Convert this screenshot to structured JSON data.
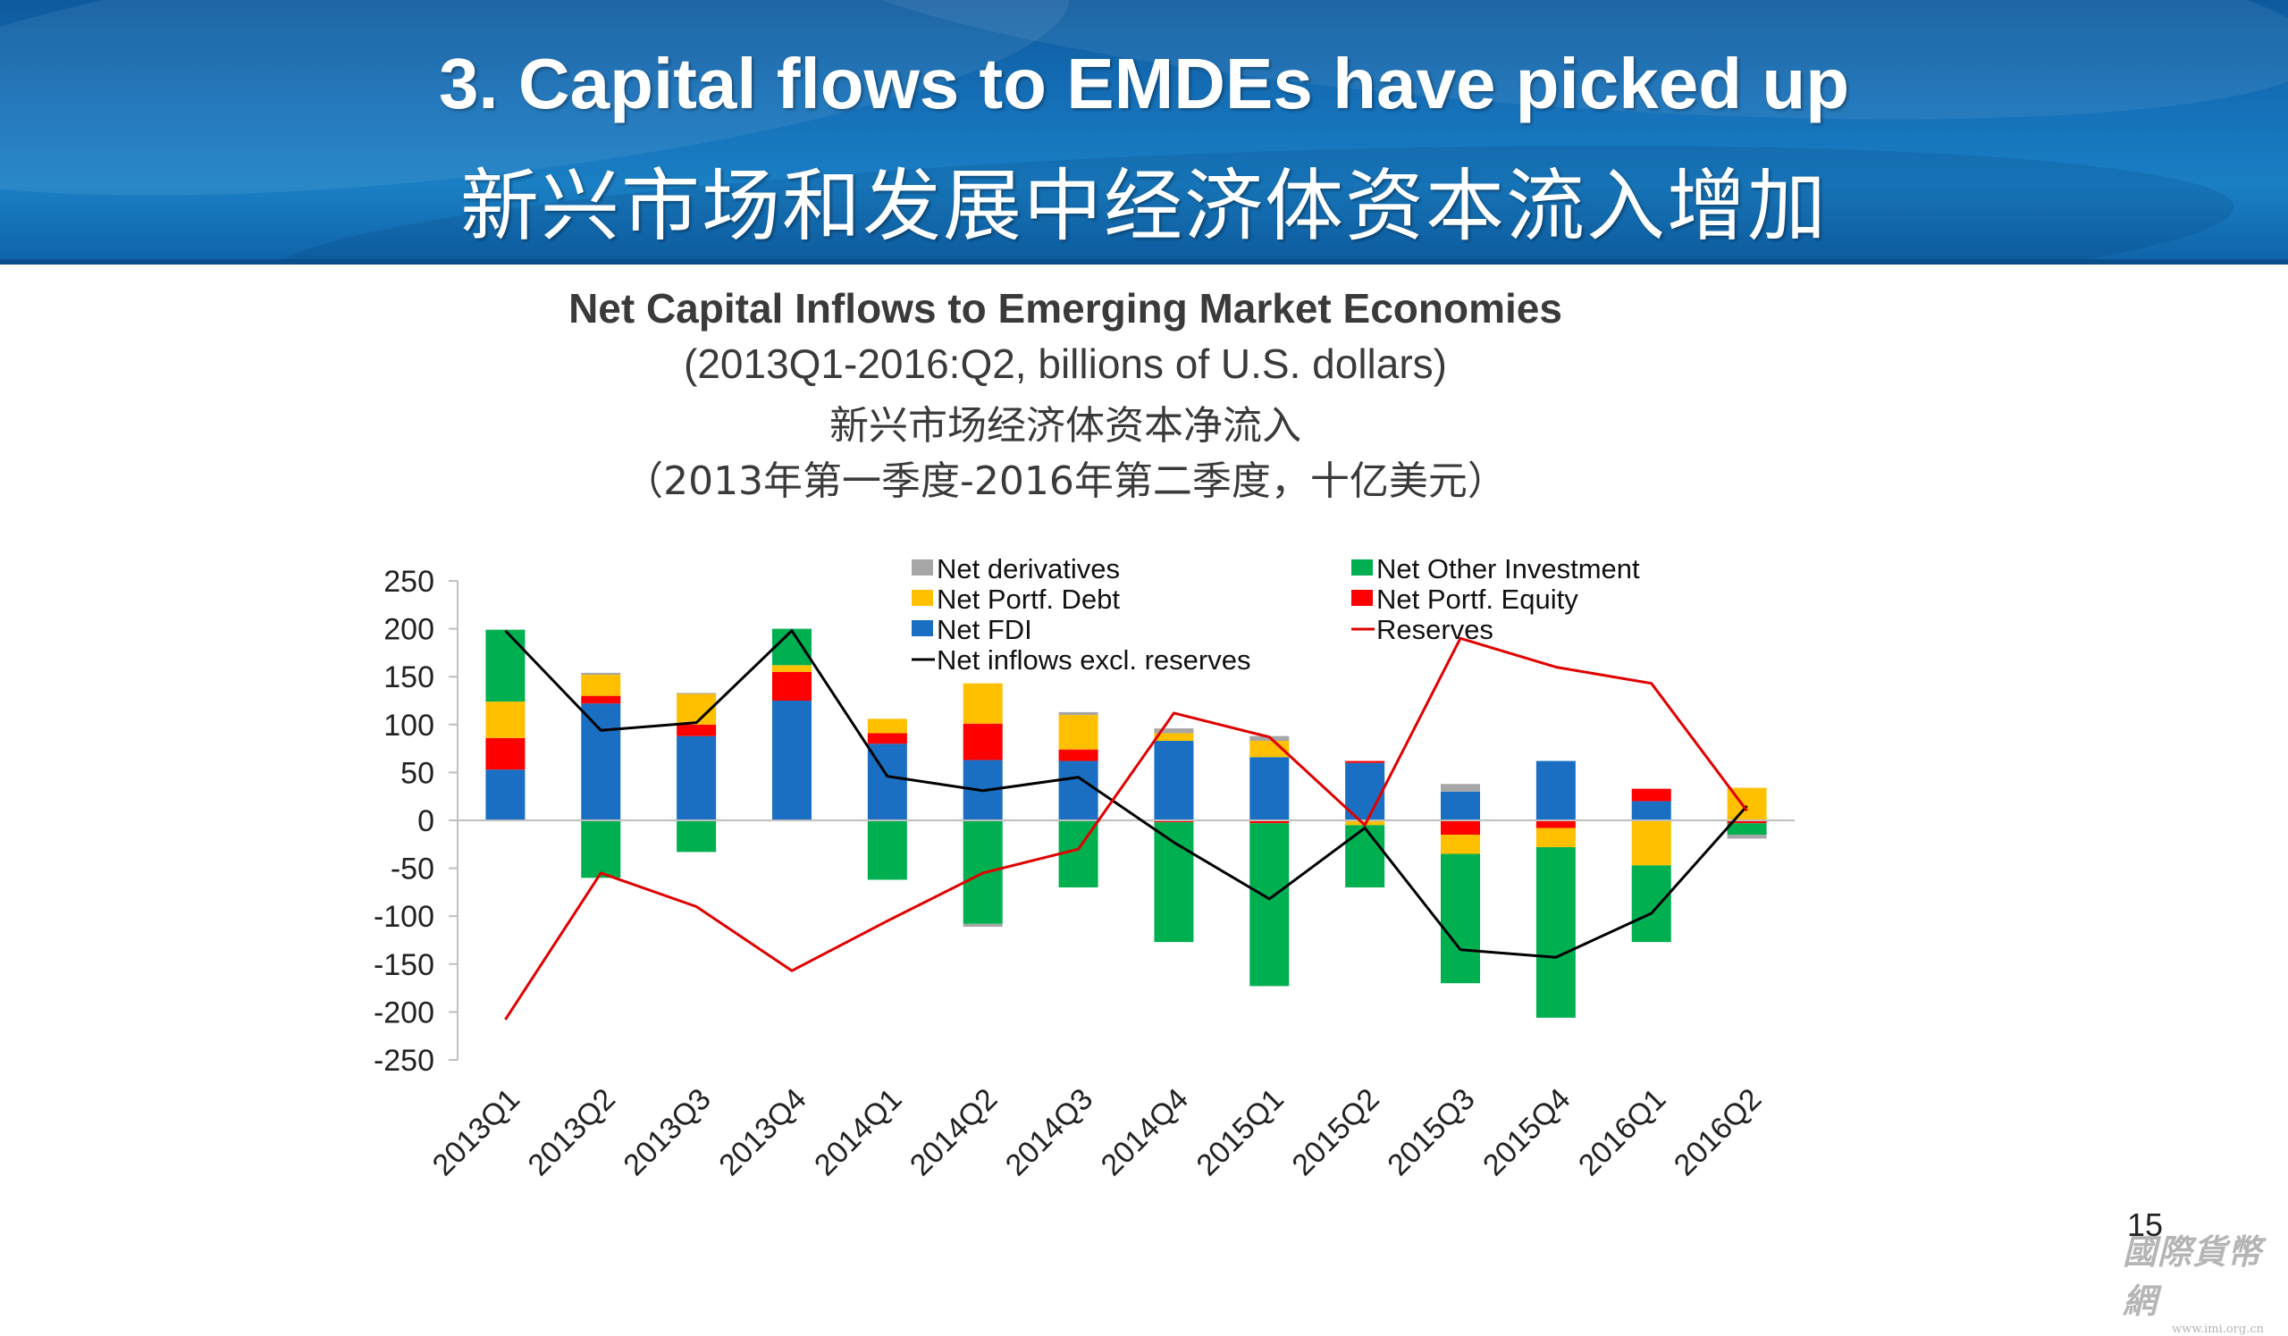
{
  "slide": {
    "title_en": "3. Capital flows to EMDEs have picked up",
    "title_zh": "新兴市场和发展中经济体资本流入增加",
    "page_number": "15",
    "watermark_text": "國際貨幣網",
    "watermark_url": "www.imi.org.cn",
    "banner_color": "#1570b8"
  },
  "chart_data": {
    "type": "bar",
    "stacked": true,
    "title": "Net Capital Inflows to Emerging Market Economies",
    "subtitle": "(2013Q1-2016:Q2, billions of U.S. dollars)",
    "title_zh": "新兴市场经济体资本净流入",
    "subtitle_zh": "（2013年第一季度-2016年第二季度，十亿美元）",
    "categories": [
      "2013Q1",
      "2013Q2",
      "2013Q3",
      "2013Q4",
      "2014Q1",
      "2014Q2",
      "2014Q3",
      "2014Q4",
      "2015Q1",
      "2015Q2",
      "2015Q3",
      "2015Q4",
      "2016Q1",
      "2016Q2"
    ],
    "ylim": [
      -250,
      250
    ],
    "yticks": [
      "250",
      "200",
      "150",
      "100",
      "50",
      "0",
      "-50",
      "-100",
      "-150",
      "-200",
      "-250"
    ],
    "grid": false,
    "legend_position": "top",
    "legend": [
      {
        "label": "Net derivatives",
        "series": "derivatives",
        "kind": "box"
      },
      {
        "label": "Net Other Investment",
        "series": "other_investment",
        "kind": "box"
      },
      {
        "label": "Net Portf. Debt",
        "series": "portfolio_debt",
        "kind": "box"
      },
      {
        "label": "Net Portf. Equity",
        "series": "portfolio_equity",
        "kind": "box"
      },
      {
        "label": "Net FDI",
        "series": "fdi",
        "kind": "box"
      },
      {
        "label": "Reserves",
        "series": "reserves",
        "kind": "line"
      },
      {
        "label": "Net inflows excl. reserves",
        "series": "net_inflows",
        "kind": "line"
      }
    ],
    "bar_series": [
      {
        "key": "fdi",
        "name": "Net FDI",
        "color": "#1a6fc2",
        "values": [
          53,
          122,
          88,
          125,
          80,
          63,
          62,
          83,
          66,
          60,
          30,
          62,
          20,
          0
        ]
      },
      {
        "key": "portfolio_equity",
        "name": "Net Portf. Equity",
        "color": "#ff0000",
        "values": [
          33,
          8,
          12,
          30,
          11,
          38,
          12,
          -2,
          -3,
          2,
          -15,
          -8,
          13,
          -3
        ]
      },
      {
        "key": "portfolio_debt",
        "name": "Net Portf. Debt",
        "color": "#ffc000",
        "values": [
          38,
          22,
          32,
          7,
          15,
          42,
          36,
          8,
          17,
          -5,
          -20,
          -20,
          -47,
          34
        ]
      },
      {
        "key": "other_investment",
        "name": "Net Other Investment",
        "color": "#00b050",
        "values": [
          75,
          -60,
          -33,
          38,
          -62,
          -108,
          -70,
          -125,
          -170,
          -65,
          -135,
          -178,
          -80,
          -12
        ]
      },
      {
        "key": "derivatives",
        "name": "Net derivatives",
        "color": "#a6a6a6",
        "values": [
          0,
          2,
          1,
          0,
          0,
          -3,
          3,
          5,
          5,
          0,
          8,
          0,
          0,
          -4
        ]
      }
    ],
    "line_series": [
      {
        "key": "net_inflows",
        "name": "Net inflows excl. reserves",
        "color": "#000000",
        "values": [
          198,
          94,
          102,
          198,
          46,
          31,
          45,
          -23,
          -82,
          -8,
          -135,
          -143,
          -97,
          15
        ]
      },
      {
        "key": "reserves",
        "name": "Reserves",
        "color": "#e00000",
        "values": [
          -208,
          -55,
          -90,
          -157,
          -105,
          -55,
          -30,
          112,
          87,
          -5,
          190,
          160,
          143,
          10
        ]
      }
    ]
  }
}
